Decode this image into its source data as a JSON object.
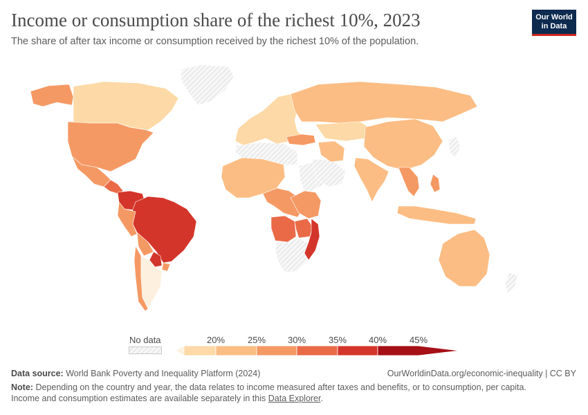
{
  "header": {
    "title": "Income or consumption share of the richest 10%, 2023",
    "subtitle": "The share of after tax income or consumption received by the richest 10% of the population."
  },
  "logo": {
    "line1": "Our World",
    "line2": "in Data"
  },
  "legend": {
    "no_data_label": "No data",
    "ticks": [
      "20%",
      "25%",
      "30%",
      "35%",
      "40%",
      "45%"
    ],
    "colors": [
      "#fdf0de",
      "#fcd9a6",
      "#fbbd84",
      "#f59964",
      "#ea6a48",
      "#d4352a",
      "#a50f15"
    ]
  },
  "map_data": {
    "regions": [
      {
        "name": "Canada",
        "bin": 1
      },
      {
        "name": "Alaska",
        "bin": 3
      },
      {
        "name": "United States",
        "bin": 3
      },
      {
        "name": "Mexico",
        "bin": 3
      },
      {
        "name": "Central America",
        "bin": 4
      },
      {
        "name": "Colombia",
        "bin": 5
      },
      {
        "name": "Brazil",
        "bin": 5
      },
      {
        "name": "Peru",
        "bin": 3
      },
      {
        "name": "Bolivia",
        "bin": 3
      },
      {
        "name": "Paraguay",
        "bin": 5
      },
      {
        "name": "Uruguay",
        "bin": 3
      },
      {
        "name": "Chile",
        "bin": 3
      },
      {
        "name": "Argentina",
        "bin": 0
      },
      {
        "name": "Europe",
        "bin": 1
      },
      {
        "name": "Turkey",
        "bin": 3
      },
      {
        "name": "Russia",
        "bin": 2
      },
      {
        "name": "Kazakhstan",
        "bin": 1
      },
      {
        "name": "China",
        "bin": 2
      },
      {
        "name": "India",
        "bin": 2
      },
      {
        "name": "Iran",
        "bin": 2
      },
      {
        "name": "Southeast Asia",
        "bin": 3
      },
      {
        "name": "Philippines",
        "bin": 3
      },
      {
        "name": "Indonesia",
        "bin": 2
      },
      {
        "name": "Australia",
        "bin": 2
      },
      {
        "name": "West Africa",
        "bin": 2
      },
      {
        "name": "Central Africa",
        "bin": 3
      },
      {
        "name": "Angola",
        "bin": 4
      },
      {
        "name": "Zambia",
        "bin": 4
      },
      {
        "name": "Mozambique",
        "bin": 5
      },
      {
        "name": "East Africa",
        "bin": 3
      }
    ]
  },
  "footer": {
    "source_label": "Data source:",
    "source_text": "World Bank Poverty and Inequality Platform (2024)",
    "url_text": "OurWorldinData.org/economic-inequality | CC BY",
    "note_label": "Note:",
    "note_text1": "Depending on the country and year, the data relates to income measured after taxes and benefits, or to consumption, per capita.",
    "note_text2": "Income and consumption estimates are available separately in this",
    "note_link": "Data Explorer",
    "note_end": "."
  }
}
